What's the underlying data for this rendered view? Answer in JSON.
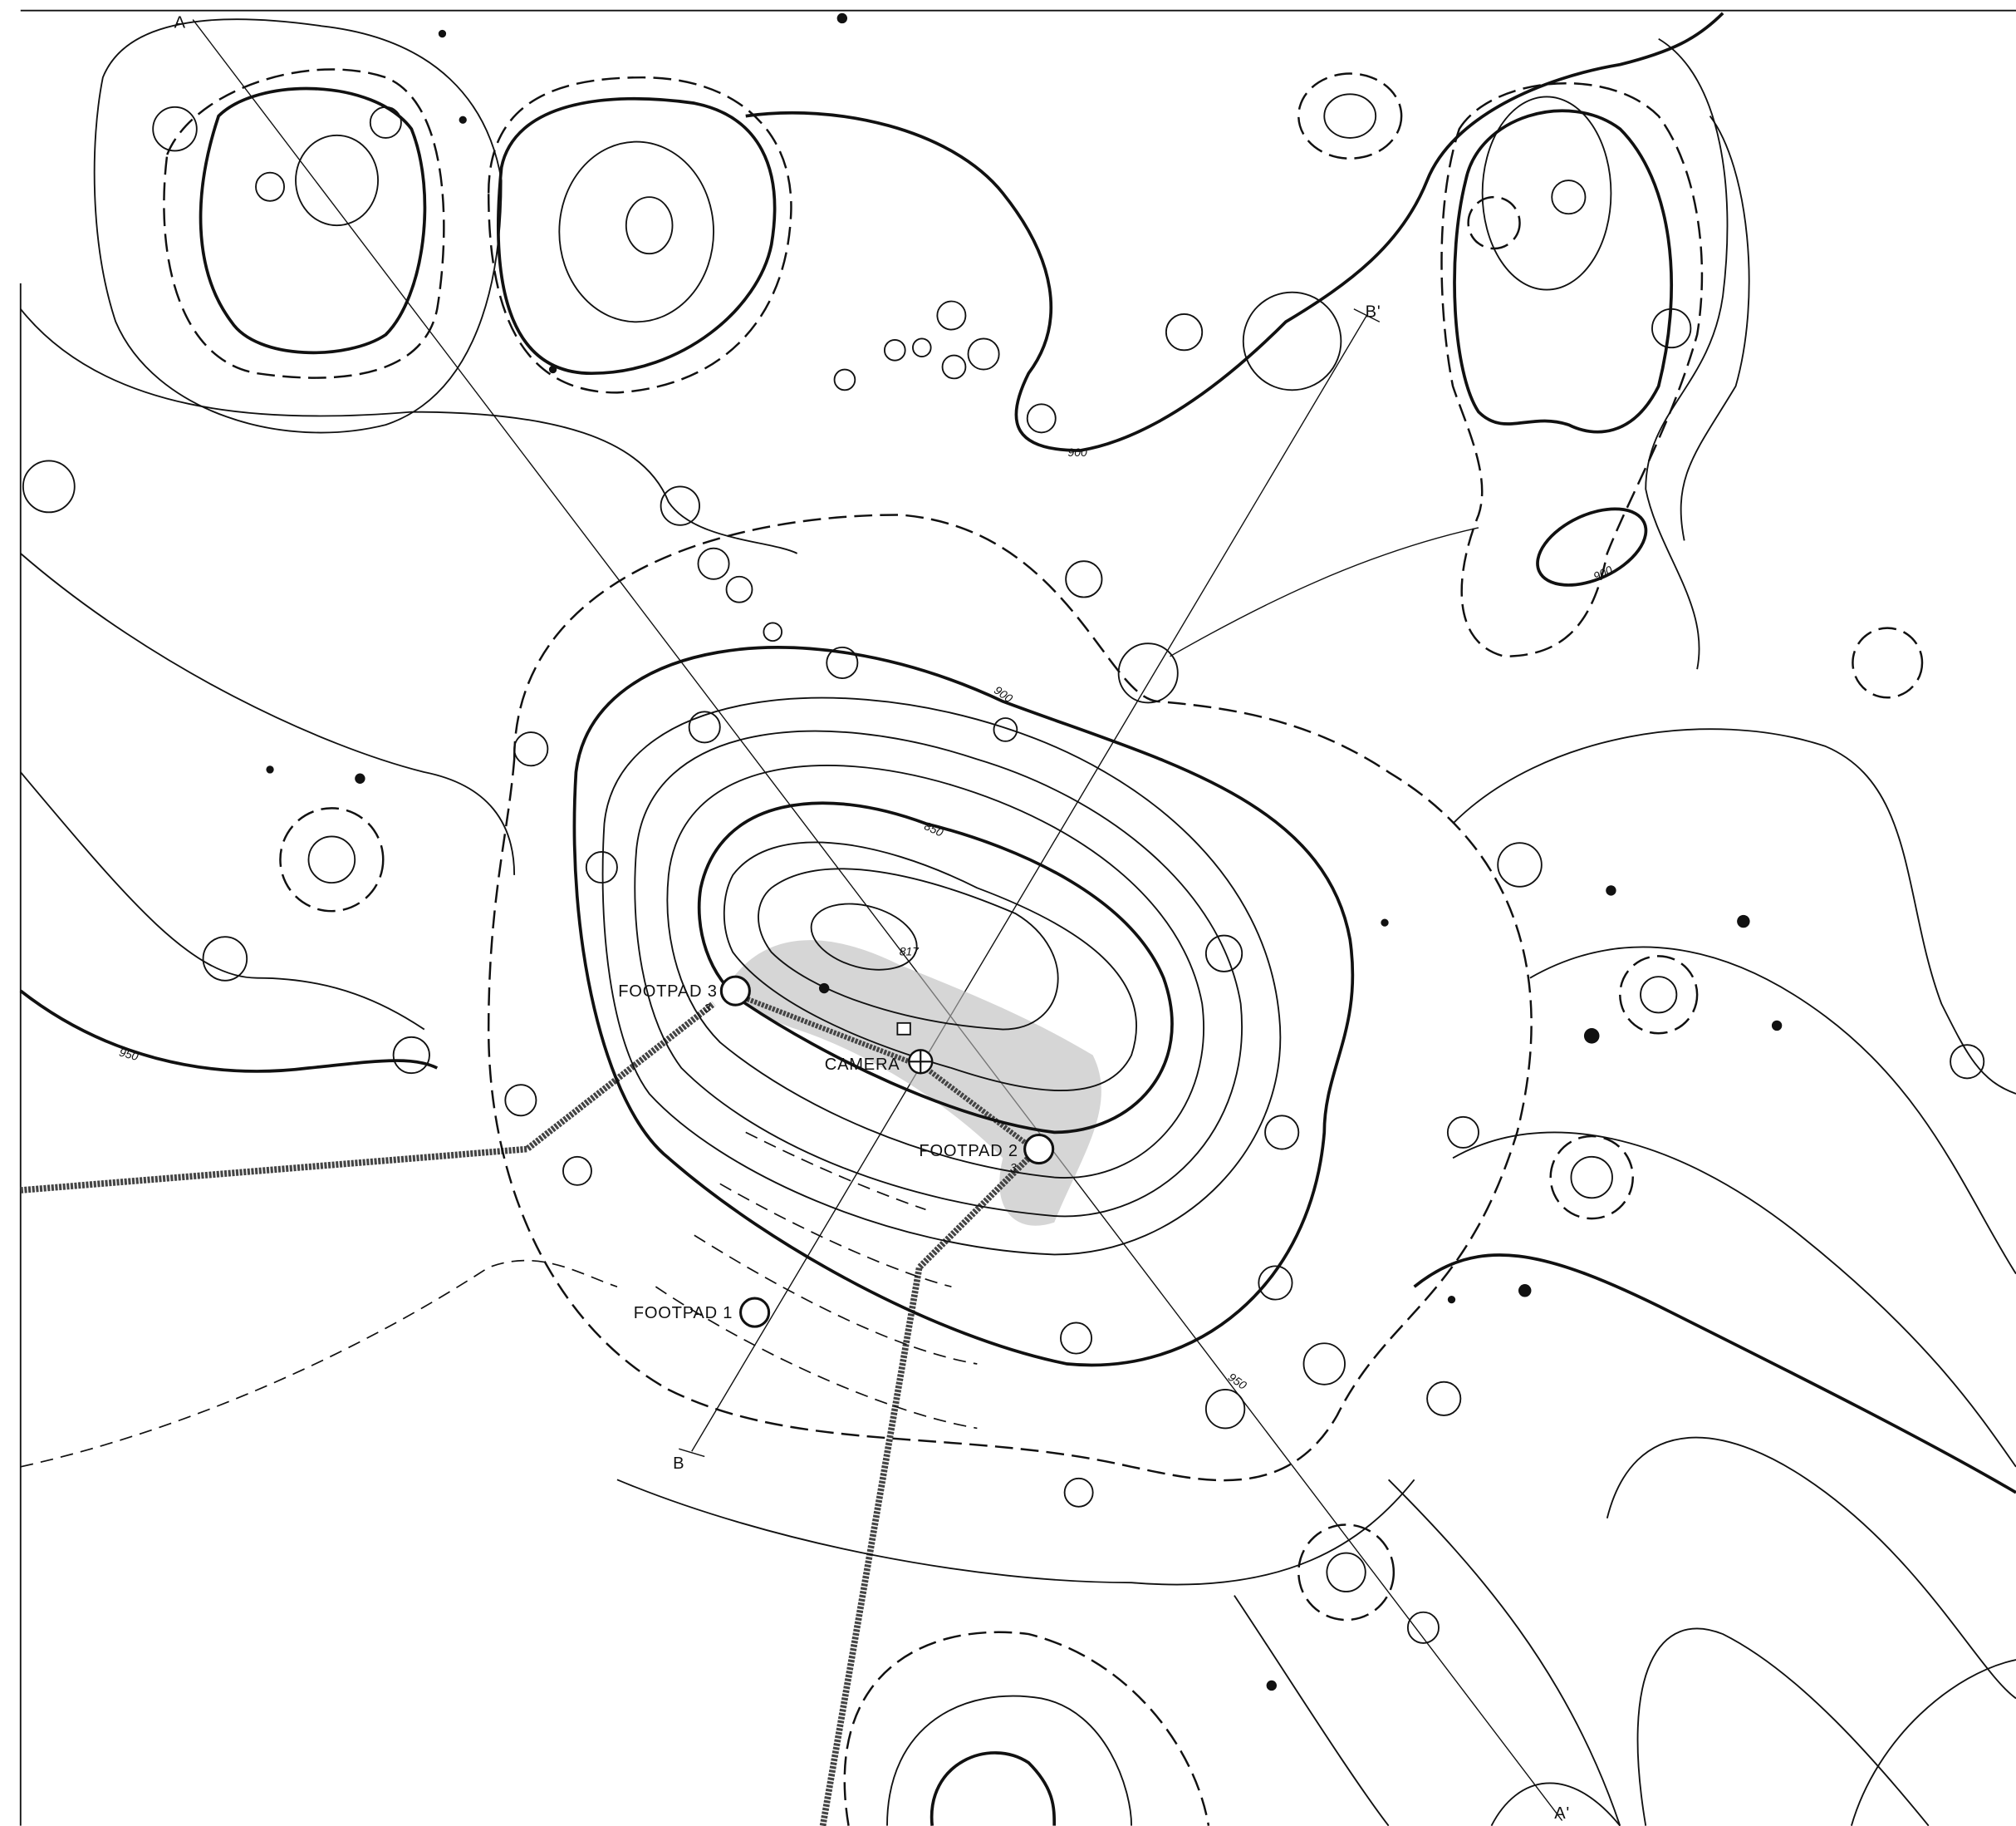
{
  "labels": [
    "A",
    "B'",
    "900",
    "900",
    "900",
    "950",
    "850",
    "817",
    "FOOTPAD 3",
    "3",
    "CAMERA",
    "FOOTPAD 2",
    "3",
    "FOOTPAD 1",
    "B",
    "950",
    "A'"
  ]
}
